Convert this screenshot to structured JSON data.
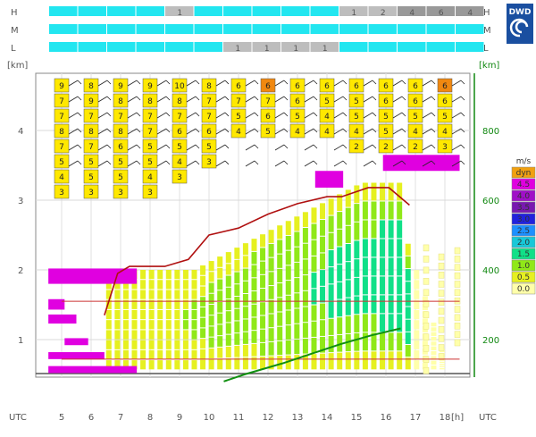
{
  "logo": {
    "text": "DWD"
  },
  "chart_data": {
    "type": "meteogram",
    "cloud_layers": [
      {
        "label": "H",
        "values": [
          null,
          null,
          null,
          null,
          1,
          null,
          null,
          null,
          null,
          null,
          1,
          2,
          4,
          6,
          4
        ]
      },
      {
        "label": "M",
        "values": [
          null,
          null,
          null,
          null,
          null,
          null,
          null,
          null,
          null,
          null,
          null,
          null,
          null,
          null,
          null
        ]
      },
      {
        "label": "L",
        "values": [
          null,
          null,
          null,
          null,
          null,
          null,
          1,
          1,
          1,
          1,
          null,
          null,
          null,
          null,
          null
        ]
      }
    ],
    "cloud_layer_colors": {
      "clear": "#22E6F0",
      "cloudy": "#BDBDBD",
      "cloudy_dark": "#999999"
    },
    "x": {
      "label": "UTC",
      "unit": "[h]",
      "ticks": [
        5,
        6,
        7,
        8,
        9,
        10,
        11,
        12,
        13,
        14,
        15,
        16,
        17,
        18
      ]
    },
    "y_left": {
      "unit": "[km]",
      "ticks": [
        1,
        2,
        3,
        4
      ],
      "range": [
        0.25,
        4.8
      ]
    },
    "y_right": {
      "unit": "[km]",
      "ticks": [
        200,
        400,
        600,
        800
      ],
      "range": [
        0,
        1000
      ]
    },
    "boundary_layer_height_km": [
      [
        6.45,
        1.35
      ],
      [
        6.9,
        1.95
      ],
      [
        7.3,
        2.05
      ],
      [
        8.0,
        2.05
      ],
      [
        8.5,
        2.05
      ],
      [
        9.3,
        2.15
      ],
      [
        10.0,
        2.5
      ],
      [
        11.0,
        2.6
      ],
      [
        12.0,
        2.8
      ],
      [
        13.0,
        2.95
      ],
      [
        14.0,
        3.05
      ],
      [
        14.5,
        3.05
      ],
      [
        15.4,
        3.18
      ],
      [
        16.1,
        3.18
      ],
      [
        16.8,
        2.93
      ]
    ],
    "green_line_km": [
      [
        10.5,
        0.12
      ],
      [
        11.2,
        0.22
      ],
      [
        12.5,
        0.38
      ],
      [
        13.5,
        0.52
      ],
      [
        14.5,
        0.66
      ],
      [
        15.5,
        0.78
      ],
      [
        16.5,
        0.88
      ]
    ],
    "thunder_layers": [
      {
        "y0": 0.72,
        "y1": 0.72,
        "x0": 5.0,
        "x1": 18.5,
        "color": "#CC3333"
      },
      {
        "y0": 1.55,
        "y1": 1.55,
        "x0": 5.0,
        "x1": 18.5,
        "color": "#CC3333"
      }
    ],
    "magenta_bars": [
      {
        "x0": 4.55,
        "x1": 7.55,
        "y0": 0.52,
        "y1": 0.62
      },
      {
        "x0": 4.55,
        "x1": 6.45,
        "y0": 0.72,
        "y1": 0.82
      },
      {
        "x0": 5.1,
        "x1": 5.9,
        "y0": 0.92,
        "y1": 1.02
      },
      {
        "x0": 4.55,
        "x1": 5.5,
        "y0": 1.23,
        "y1": 1.36
      },
      {
        "x0": 4.55,
        "x1": 5.1,
        "y0": 1.43,
        "y1": 1.58
      },
      {
        "x0": 4.55,
        "x1": 7.55,
        "y0": 1.8,
        "y1": 2.02
      },
      {
        "x0": 13.6,
        "x1": 14.55,
        "y0": 3.18,
        "y1": 3.42
      },
      {
        "x0": 15.9,
        "x1": 18.5,
        "y0": 3.42,
        "y1": 3.65
      }
    ],
    "legend": {
      "title": "m/s",
      "items": [
        {
          "label": "dyn",
          "color": "#F0A010"
        },
        {
          "label": "4.5",
          "color": "#E000E0"
        },
        {
          "label": "4.0",
          "color": "#A010C8"
        },
        {
          "label": "3.5",
          "color": "#7818B0"
        },
        {
          "label": "3.0",
          "color": "#2222DD"
        },
        {
          "label": "2.5",
          "color": "#1E90FF"
        },
        {
          "label": "2.0",
          "color": "#18C8D8"
        },
        {
          "label": "1.5",
          "color": "#10E088"
        },
        {
          "label": "1.0",
          "color": "#90E818"
        },
        {
          "label": "0.5",
          "color": "#E6F020"
        },
        {
          "label": "0.0",
          "color": "#FFFFAA"
        }
      ]
    },
    "cloud_tops": [
      {
        "x": 5,
        "top_km": 4.5,
        "values": [
          9,
          7,
          7,
          8,
          7,
          5,
          4,
          3
        ]
      },
      {
        "x": 6,
        "top_km": 4.5,
        "values": [
          8,
          9,
          7,
          8,
          7,
          5,
          5,
          3
        ]
      },
      {
        "x": 7,
        "top_km": 4.5,
        "values": [
          9,
          8,
          7,
          8,
          6,
          5,
          5,
          3
        ]
      },
      {
        "x": 8,
        "top_km": 4.5,
        "values": [
          9,
          8,
          7,
          7,
          5,
          5,
          4,
          3
        ]
      },
      {
        "x": 9,
        "top_km": 4.5,
        "values": [
          10,
          8,
          7,
          6,
          5,
          4,
          3
        ]
      },
      {
        "x": 10,
        "top_km": 4.5,
        "values": [
          8,
          7,
          7,
          6,
          5,
          3
        ]
      },
      {
        "x": 11,
        "top_km": 4.5,
        "values": [
          6,
          7,
          5,
          4
        ]
      },
      {
        "x": 12,
        "top_km": 4.5,
        "values": [
          6,
          7,
          6,
          5
        ]
      },
      {
        "x": 13,
        "top_km": 4.5,
        "values": [
          6,
          6,
          5,
          4
        ]
      },
      {
        "x": 14,
        "top_km": 4.5,
        "values": [
          6,
          5,
          4,
          4
        ]
      },
      {
        "x": 15,
        "top_km": 4.5,
        "values": [
          6,
          5,
          5,
          4,
          2
        ]
      },
      {
        "x": 16,
        "top_km": 4.5,
        "values": [
          6,
          6,
          5,
          5,
          2
        ]
      },
      {
        "x": 17,
        "top_km": 4.5,
        "values": [
          6,
          6,
          5,
          4,
          2
        ]
      },
      {
        "x": 18,
        "top_km": 4.5,
        "values": [
          6,
          6,
          5,
          4,
          3
        ]
      }
    ]
  }
}
